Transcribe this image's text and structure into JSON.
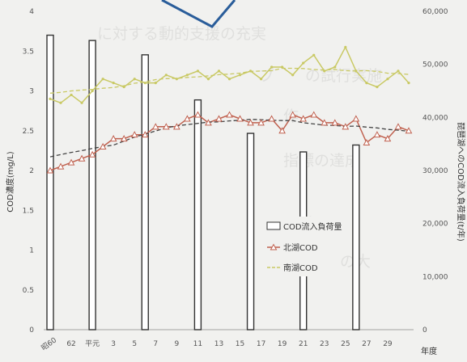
{
  "chart_data": {
    "type": "bar+line",
    "title": "",
    "ylabel": "COD濃度(mg/L)",
    "y2label": "琵琶湖へのCOD流入負荷量(t/年)",
    "xlabel": "年度",
    "ylim": [
      0,
      4
    ],
    "y2lim": [
      0,
      60000
    ],
    "y_ticks": [
      "0",
      "0.5",
      "1",
      "1.5",
      "2",
      "2.5",
      "3",
      "3.5",
      "4"
    ],
    "y2_ticks": [
      "0",
      "10,000",
      "20,000",
      "30,000",
      "40,000",
      "50,000",
      "60,000"
    ],
    "x_ticks": [
      "昭60",
      "62",
      "平元",
      "3",
      "5",
      "7",
      "9",
      "11",
      "13",
      "15",
      "17",
      "19",
      "21",
      "23",
      "25",
      "27",
      "29"
    ],
    "grid": false,
    "legend_position": "center-right",
    "legend": [
      "COD流入負荷量",
      "北湖COD",
      "南湖COD"
    ],
    "bar_series": {
      "name": "COD流入負荷量",
      "x_index": [
        0,
        4,
        9,
        14,
        19,
        24,
        29
      ],
      "values": [
        55500,
        54500,
        51800,
        43300,
        37000,
        33500,
        34800
      ]
    },
    "series": [
      {
        "name": "北湖COD",
        "color": "#c0614f",
        "values": [
          2.0,
          2.05,
          2.1,
          2.15,
          2.2,
          2.3,
          2.4,
          2.4,
          2.45,
          2.45,
          2.55,
          2.55,
          2.55,
          2.65,
          2.7,
          2.6,
          2.65,
          2.7,
          2.65,
          2.6,
          2.6,
          2.65,
          2.5,
          2.7,
          2.65,
          2.7,
          2.6,
          2.6,
          2.55,
          2.65,
          2.35,
          2.45,
          2.4,
          2.55,
          2.5
        ]
      },
      {
        "name": "南湖COD",
        "color": "#c9c964",
        "values": [
          2.9,
          2.85,
          2.95,
          2.85,
          3.0,
          3.15,
          3.1,
          3.05,
          3.15,
          3.1,
          3.1,
          3.2,
          3.15,
          3.2,
          3.25,
          3.15,
          3.25,
          3.15,
          3.2,
          3.25,
          3.15,
          3.3,
          3.3,
          3.2,
          3.35,
          3.45,
          3.25,
          3.3,
          3.55,
          3.25,
          3.1,
          3.05,
          3.15,
          3.25,
          3.1
        ]
      }
    ]
  }
}
